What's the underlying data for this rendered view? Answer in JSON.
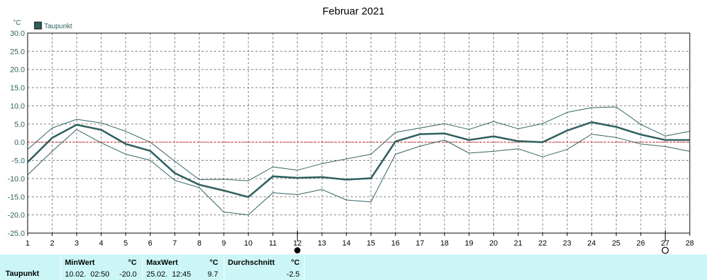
{
  "title": "Februar 2021",
  "unit_label": "°C",
  "legend_label": "Taupunkt",
  "colors": {
    "line": "#2f6060",
    "minmax": "#2f6060",
    "zero": "#e02020",
    "grid": "#808080",
    "axis_text": "#2f6060",
    "footer_bg": "#ccf6f6"
  },
  "chart_data": {
    "type": "line",
    "title": "Februar 2021",
    "ylabel": "°C",
    "ylim": [
      -25,
      30
    ],
    "xlim": [
      1,
      28
    ],
    "x_ticks": [
      1,
      2,
      3,
      4,
      5,
      6,
      7,
      8,
      9,
      10,
      11,
      12,
      13,
      14,
      15,
      16,
      17,
      18,
      19,
      20,
      21,
      22,
      23,
      24,
      25,
      26,
      27,
      28
    ],
    "y_ticks": [
      "30.0",
      "25.0",
      "20.0",
      "15.0",
      "10.0",
      "5.0",
      "0.0",
      "-5.0",
      "-10.0",
      "-15.0",
      "-20.0",
      "-25.0"
    ],
    "grid": true,
    "legend": "top-left",
    "markers": [
      {
        "x": 12,
        "symbol": "full-moon"
      },
      {
        "x": 27,
        "symbol": "new-moon"
      }
    ],
    "series": [
      {
        "name": "Taupunkt",
        "x": [
          1,
          2,
          3,
          4,
          5,
          6,
          7,
          8,
          9,
          10,
          11,
          12,
          13,
          14,
          15,
          16,
          17,
          18,
          19,
          20,
          21,
          22,
          23,
          24,
          25,
          26,
          27,
          28
        ],
        "values": [
          -5.5,
          1.2,
          4.8,
          3.4,
          -0.5,
          -2.4,
          -8.5,
          -11.7,
          -13.3,
          -15.1,
          -9.4,
          -9.8,
          -9.6,
          -10.3,
          -9.9,
          0.2,
          2.2,
          2.4,
          0.6,
          1.6,
          0.3,
          0.0,
          3.2,
          5.5,
          4.2,
          2.1,
          0.6,
          0.6
        ]
      },
      {
        "x": [
          1,
          2,
          3,
          4,
          5,
          6,
          7,
          8,
          9,
          10,
          11,
          12,
          13,
          14,
          15,
          16,
          17,
          18,
          19,
          20,
          21,
          22,
          23,
          24,
          25,
          26,
          27,
          28
        ],
        "values": [
          -2.0,
          3.9,
          6.3,
          5.3,
          3.0,
          0.0,
          -5.2,
          -10.3,
          -10.2,
          -10.6,
          -6.8,
          -7.7,
          -5.9,
          -4.6,
          -3.3,
          2.7,
          3.9,
          5.1,
          3.5,
          5.7,
          3.7,
          5.1,
          8.2,
          9.5,
          9.7,
          4.9,
          1.7,
          3.0
        ]
      },
      {
        "x": [
          1,
          2,
          3,
          4,
          5,
          6,
          7,
          8,
          9,
          10,
          11,
          12,
          13,
          14,
          15,
          16,
          17,
          18,
          19,
          20,
          21,
          22,
          23,
          24,
          25,
          26,
          27,
          28
        ],
        "values": [
          -9.0,
          -2.5,
          3.5,
          -0.2,
          -3.3,
          -5.0,
          -10.5,
          -12.5,
          -19.2,
          -20.0,
          -13.9,
          -14.4,
          -13.0,
          -15.9,
          -16.4,
          -3.3,
          -1.1,
          0.6,
          -3.0,
          -2.5,
          -1.8,
          -4.0,
          -2.0,
          2.2,
          1.3,
          -0.5,
          -1.2,
          -2.5
        ]
      }
    ]
  },
  "stats": {
    "row_label": "Taupunkt",
    "min": {
      "header": "MinWert",
      "unit": "°C",
      "date": "10.02.",
      "time": "02:50",
      "value": "-20.0"
    },
    "max": {
      "header": "MaxWert",
      "unit": "°C",
      "date": "25.02.",
      "time": "12:45",
      "value": "9.7"
    },
    "avg": {
      "header": "Durchschnitt",
      "unit": "°C",
      "value": "-2.5"
    }
  }
}
